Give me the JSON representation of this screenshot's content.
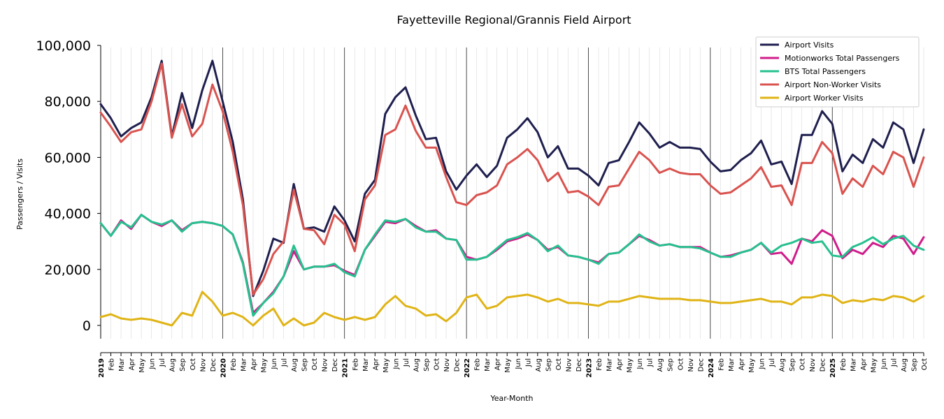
{
  "chart_data": {
    "type": "line",
    "title": "Fayetteville Regional/Grannis Field Airport",
    "xlabel": "Year-Month",
    "ylabel": "Passengers / Visits",
    "ylim": [
      -5000,
      100000
    ],
    "yticks": [
      "0",
      "20,000",
      "40,000",
      "60,000",
      "80,000",
      "100,000"
    ],
    "legend_position": "top-right",
    "grid": "vertical-monthly",
    "x": [
      "2019",
      "Feb",
      "Mar",
      "Apr",
      "May",
      "Jun",
      "Jul",
      "Aug",
      "Sep",
      "Oct",
      "Nov",
      "Dec",
      "2020",
      "Feb",
      "Mar",
      "Apr",
      "May",
      "Jun",
      "Jul",
      "Aug",
      "Sep",
      "Oct",
      "Nov",
      "Dec",
      "2021",
      "Feb",
      "Mar",
      "Apr",
      "May",
      "Jun",
      "Jul",
      "Aug",
      "Sep",
      "Oct",
      "Nov",
      "Dec",
      "2022",
      "Feb",
      "Mar",
      "Apr",
      "May",
      "Jun",
      "Jul",
      "Aug",
      "Sep",
      "Oct",
      "Nov",
      "Dec",
      "2023",
      "Feb",
      "Mar",
      "Apr",
      "May",
      "Jun",
      "Jul",
      "Aug",
      "Sep",
      "Oct",
      "Nov",
      "Dec",
      "2024",
      "Feb",
      "Mar",
      "Apr",
      "May",
      "Jun",
      "Jul",
      "Aug",
      "Sep",
      "Oct",
      "Nov",
      "Dec",
      "2025",
      "Feb",
      "Mar",
      "Apr",
      "May",
      "Jun",
      "Jul",
      "Aug",
      "Sep",
      "Oct"
    ],
    "series": [
      {
        "name": "Airport Visits",
        "color": "#1f1f4f",
        "values": [
          79000,
          74000,
          67500,
          70500,
          72500,
          81500,
          94500,
          67500,
          83000,
          70500,
          84000,
          94500,
          80000,
          65500,
          45000,
          10500,
          19500,
          31000,
          29500,
          50500,
          34500,
          35000,
          33500,
          42500,
          37500,
          30000,
          47000,
          52000,
          75500,
          81500,
          85000,
          75000,
          66500,
          67000,
          55000,
          48500,
          53500,
          57500,
          53000,
          57000,
          67000,
          70000,
          74000,
          69000,
          60000,
          64000,
          56000,
          56000,
          53500,
          50000,
          58000,
          59000,
          65500,
          72500,
          68500,
          63500,
          65500,
          63500,
          63500,
          63000,
          58500,
          55000,
          55500,
          59000,
          61500,
          66000,
          57500,
          58500,
          50500,
          68000,
          68000,
          76500,
          72000,
          55000,
          61000,
          58000,
          66500,
          63500,
          72500,
          70000,
          58000,
          70000
        ]
      },
      {
        "name": "Motionworks Total Passengers",
        "color": "#d01c8b",
        "values": [
          36500,
          32000,
          37500,
          34500,
          39500,
          37000,
          35500,
          37500,
          34000,
          36500,
          37000,
          36500,
          35500,
          32500,
          22500,
          4500,
          8000,
          12000,
          17500,
          26500,
          20000,
          21000,
          21000,
          21500,
          19500,
          18000,
          27000,
          32000,
          37000,
          36500,
          38000,
          35500,
          33500,
          34000,
          31000,
          30500,
          24500,
          23500,
          24500,
          27000,
          30000,
          31000,
          32500,
          30500,
          27000,
          28000,
          25000,
          24500,
          23500,
          22500,
          25500,
          26000,
          29000,
          32000,
          30500,
          28500,
          29000,
          28000,
          28000,
          28000,
          26000,
          24500,
          25000,
          26000,
          27000,
          29500,
          25500,
          26000,
          22000,
          31000,
          30000,
          34000,
          32000,
          24000,
          27000,
          25500,
          29500,
          28000,
          32000,
          31000,
          25500,
          31500
        ]
      },
      {
        "name": "BTS Total Passengers",
        "color": "#26c08f",
        "values": [
          36500,
          32000,
          37000,
          35000,
          39500,
          37000,
          36000,
          37500,
          33500,
          36500,
          37000,
          36500,
          35500,
          32500,
          22000,
          3500,
          8000,
          11500,
          17500,
          28500,
          20000,
          21000,
          21000,
          22000,
          19000,
          17500,
          27000,
          32500,
          37500,
          37000,
          38000,
          35000,
          33500,
          33500,
          31000,
          30500,
          23500,
          23500,
          24500,
          27500,
          30500,
          31500,
          33000,
          30500,
          26500,
          28500,
          25000,
          24500,
          23500,
          22000,
          25500,
          26000,
          29000,
          32500,
          30000,
          28500,
          29000,
          28000,
          28000,
          27500,
          26000,
          24500,
          24500,
          26000,
          27000,
          29500,
          26000,
          28500,
          29500,
          31000,
          29500,
          30000,
          25000,
          24500,
          28000,
          29500,
          31500,
          29000,
          31000,
          32000,
          28500,
          27000
        ]
      },
      {
        "name": "Airport Non-Worker Visits",
        "color": "#d9534f",
        "values": [
          76000,
          71000,
          65500,
          69000,
          70000,
          80000,
          93500,
          67000,
          79000,
          67500,
          72000,
          86000,
          76500,
          62000,
          43000,
          11000,
          16500,
          25500,
          30000,
          48500,
          34500,
          34000,
          29000,
          39500,
          36000,
          26500,
          45000,
          50000,
          68000,
          70000,
          78500,
          69500,
          63500,
          63500,
          53000,
          44000,
          43000,
          46500,
          47500,
          50000,
          57500,
          60000,
          63000,
          59000,
          51500,
          54500,
          47500,
          48000,
          46000,
          43000,
          49500,
          50000,
          56000,
          62000,
          59000,
          54500,
          56000,
          54500,
          54000,
          54000,
          50000,
          47000,
          47500,
          50000,
          52500,
          56500,
          49500,
          50000,
          43000,
          58000,
          58000,
          65500,
          61500,
          47000,
          52500,
          49500,
          57000,
          54000,
          62000,
          60000,
          49500,
          60000
        ]
      },
      {
        "name": "Airport Worker Visits",
        "color": "#e0b416",
        "values": [
          3000,
          4000,
          2500,
          2000,
          2500,
          2000,
          1000,
          0,
          4500,
          3500,
          12000,
          8500,
          3500,
          4500,
          3000,
          0,
          3500,
          6000,
          0,
          2500,
          0,
          1000,
          4500,
          3000,
          2000,
          3000,
          2000,
          3000,
          7500,
          10500,
          7000,
          6000,
          3500,
          4000,
          1500,
          4500,
          10000,
          11000,
          6000,
          7000,
          10000,
          10500,
          11000,
          10000,
          8500,
          9500,
          8000,
          8000,
          7500,
          7000,
          8500,
          8500,
          9500,
          10500,
          10000,
          9500,
          9500,
          9500,
          9000,
          9000,
          8500,
          8000,
          8000,
          8500,
          9000,
          9500,
          8500,
          8500,
          7500,
          10000,
          10000,
          11000,
          10500,
          8000,
          9000,
          8500,
          9500,
          9000,
          10500,
          10000,
          8500,
          10500
        ]
      }
    ]
  }
}
